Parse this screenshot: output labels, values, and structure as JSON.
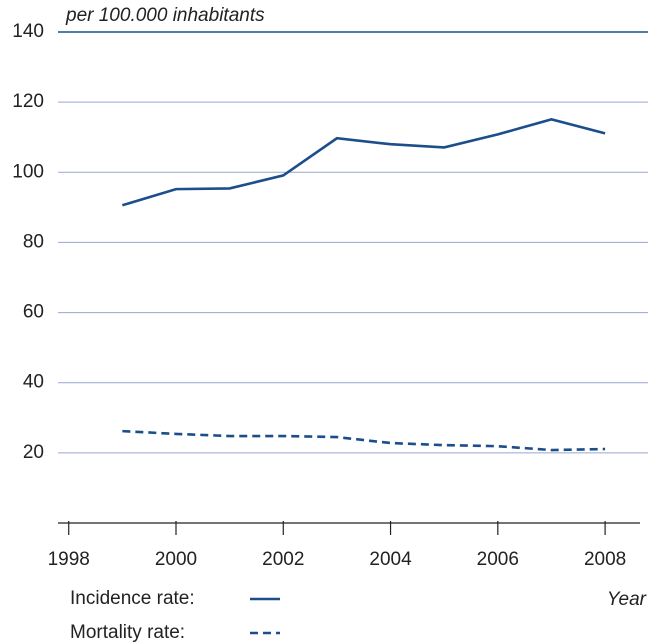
{
  "chart_data": {
    "type": "line",
    "subtitle": "per 100.000 inhabitants",
    "x_label": "Year",
    "x": [
      1999,
      2000,
      2001,
      2002,
      2003,
      2004,
      2005,
      2006,
      2007,
      2008
    ],
    "series": [
      {
        "name": "Incidence rate:",
        "color": "#1c4e8c",
        "dash": "solid",
        "values": [
          90.6,
          95.2,
          95.4,
          99.1,
          109.7,
          108.0,
          107.1,
          110.8,
          115.1,
          111.1
        ]
      },
      {
        "name": "Mortality rate:",
        "color": "#1c4e8c",
        "dash": "dashed",
        "values": [
          26.2,
          25.4,
          24.8,
          24.8,
          24.5,
          22.8,
          22.2,
          21.9,
          20.8,
          21.1
        ]
      }
    ],
    "xlim": [
      1997.8,
      2008.8
    ],
    "xticks": [
      1998,
      2000,
      2002,
      2004,
      2006,
      2008
    ],
    "ylim": [
      0,
      140
    ],
    "yticks": [
      20,
      40,
      60,
      80,
      100,
      120,
      140
    ],
    "grid": true
  }
}
